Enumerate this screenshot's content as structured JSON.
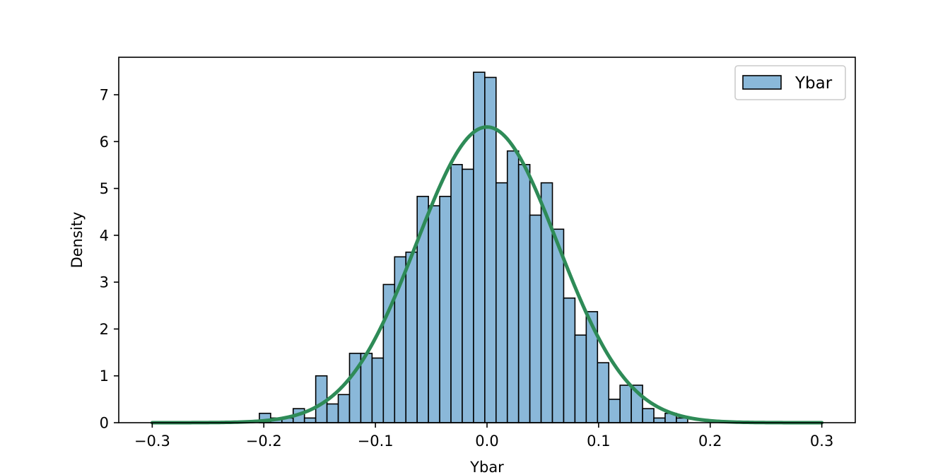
{
  "chart_data": {
    "type": "bar",
    "title": "",
    "xlabel": "Ybar",
    "ylabel": "Density",
    "xlim": [
      -0.33,
      0.33
    ],
    "ylim": [
      0,
      7.8
    ],
    "xticks": [
      -0.3,
      -0.2,
      -0.1,
      0.0,
      0.1,
      0.2,
      0.3
    ],
    "xtick_labels": [
      "−0.3",
      "−0.2",
      "−0.1",
      "0.0",
      "0.1",
      "0.2",
      "0.3"
    ],
    "yticks": [
      0,
      1,
      2,
      3,
      4,
      5,
      6,
      7
    ],
    "ytick_labels": [
      "0",
      "1",
      "2",
      "3",
      "4",
      "5",
      "6",
      "7"
    ],
    "grid": false,
    "legend": {
      "placement": "top-right",
      "entries": [
        "Ybar"
      ]
    },
    "histogram": {
      "name": "Ybar",
      "color": "#8ab8d9",
      "edge_color": "#000000",
      "bin_width": 0.0101,
      "bins": [
        {
          "left": -0.204,
          "density": 0.2
        },
        {
          "left": -0.1939,
          "density": 0.1
        },
        {
          "left": -0.1838,
          "density": 0.1
        },
        {
          "left": -0.1737,
          "density": 0.3
        },
        {
          "left": -0.1636,
          "density": 0.1
        },
        {
          "left": -0.1535,
          "density": 1.0
        },
        {
          "left": -0.1434,
          "density": 0.4
        },
        {
          "left": -0.1333,
          "density": 0.6
        },
        {
          "left": -0.1232,
          "density": 1.48
        },
        {
          "left": -0.1131,
          "density": 1.48
        },
        {
          "left": -0.103,
          "density": 1.38
        },
        {
          "left": -0.0929,
          "density": 2.95
        },
        {
          "left": -0.0828,
          "density": 3.54
        },
        {
          "left": -0.0727,
          "density": 3.64
        },
        {
          "left": -0.0626,
          "density": 4.83
        },
        {
          "left": -0.0525,
          "density": 4.63
        },
        {
          "left": -0.0424,
          "density": 4.83
        },
        {
          "left": -0.0323,
          "density": 5.51
        },
        {
          "left": -0.0222,
          "density": 5.41
        },
        {
          "left": -0.0121,
          "density": 7.48
        },
        {
          "left": -0.002,
          "density": 7.37
        },
        {
          "left": 0.0081,
          "density": 5.12
        },
        {
          "left": 0.0182,
          "density": 5.8
        },
        {
          "left": 0.0283,
          "density": 5.51
        },
        {
          "left": 0.0384,
          "density": 4.43
        },
        {
          "left": 0.0485,
          "density": 5.12
        },
        {
          "left": 0.0586,
          "density": 4.13
        },
        {
          "left": 0.0687,
          "density": 2.66
        },
        {
          "left": 0.0788,
          "density": 1.87
        },
        {
          "left": 0.0889,
          "density": 2.37
        },
        {
          "left": 0.099,
          "density": 1.28
        },
        {
          "left": 0.1091,
          "density": 0.5
        },
        {
          "left": 0.1192,
          "density": 0.8
        },
        {
          "left": 0.1293,
          "density": 0.8
        },
        {
          "left": 0.1394,
          "density": 0.3
        },
        {
          "left": 0.1495,
          "density": 0.1
        },
        {
          "left": 0.1596,
          "density": 0.2
        },
        {
          "left": 0.1697,
          "density": 0.1
        }
      ]
    },
    "density_curve": {
      "type": "line",
      "distribution": "normal",
      "mean": 0.0,
      "std": 0.0632,
      "x_range": [
        -0.3,
        0.3
      ],
      "color": "#2e8b57"
    }
  }
}
